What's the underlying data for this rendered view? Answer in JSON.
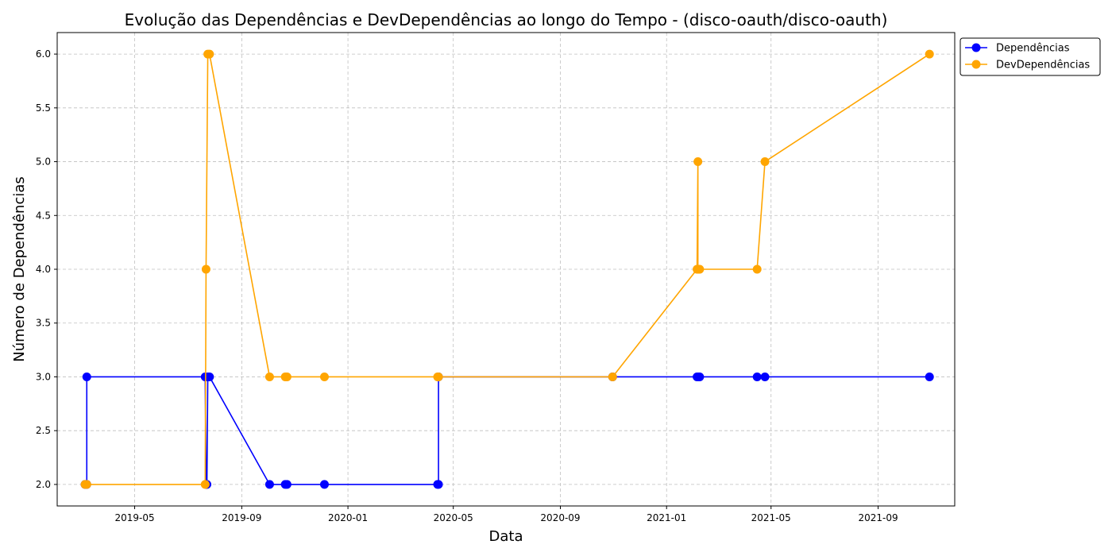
{
  "chart_data": {
    "type": "line",
    "title": "Evolução das Dependências e DevDependências ao longo do Tempo - (disco-oauth/disco-oauth)",
    "xlabel": "Data",
    "ylabel": "Número de Dependências",
    "xlim": [
      "2019-02-01",
      "2021-11-28"
    ],
    "ylim": [
      1.8,
      6.2
    ],
    "x_ticks": [
      "2019-05-01",
      "2019-09-01",
      "2020-01-01",
      "2020-05-01",
      "2020-09-01",
      "2021-01-01",
      "2021-05-01",
      "2021-09-01"
    ],
    "x_tick_labels": [
      "2019-05",
      "2019-09",
      "2020-01",
      "2020-05",
      "2020-09",
      "2021-01",
      "2021-05",
      "2021-09"
    ],
    "y_ticks": [
      2.0,
      2.5,
      3.0,
      3.5,
      4.0,
      4.5,
      5.0,
      5.5,
      6.0
    ],
    "y_tick_labels": [
      "2.0",
      "2.5",
      "3.0",
      "3.5",
      "4.0",
      "4.5",
      "5.0",
      "5.5",
      "6.0"
    ],
    "grid": true,
    "legend_position": "outside-top-right",
    "series": [
      {
        "name": "Dependências",
        "color": "#0000ff",
        "points": [
          [
            "2019-03-05",
            2
          ],
          [
            "2019-03-07",
            2
          ],
          [
            "2019-03-07",
            3
          ],
          [
            "2019-07-21",
            3
          ],
          [
            "2019-07-22",
            2
          ],
          [
            "2019-07-23",
            2
          ],
          [
            "2019-07-24",
            3
          ],
          [
            "2019-07-26",
            3
          ],
          [
            "2019-10-03",
            2
          ],
          [
            "2019-10-21",
            2
          ],
          [
            "2019-10-23",
            2
          ],
          [
            "2019-12-05",
            2
          ],
          [
            "2020-04-13",
            2
          ],
          [
            "2020-04-14",
            2
          ],
          [
            "2020-04-14",
            3
          ],
          [
            "2020-10-31",
            3
          ],
          [
            "2021-02-05",
            3
          ],
          [
            "2021-02-07",
            3
          ],
          [
            "2021-02-08",
            3
          ],
          [
            "2021-04-15",
            3
          ],
          [
            "2021-04-24",
            3
          ],
          [
            "2021-10-30",
            3
          ]
        ]
      },
      {
        "name": "DevDependências",
        "color": "#ffa500",
        "points": [
          [
            "2019-03-05",
            2
          ],
          [
            "2019-03-07",
            2
          ],
          [
            "2019-07-21",
            2
          ],
          [
            "2019-07-22",
            4
          ],
          [
            "2019-07-24",
            6
          ],
          [
            "2019-07-26",
            6
          ],
          [
            "2019-10-03",
            3
          ],
          [
            "2019-10-21",
            3
          ],
          [
            "2019-10-23",
            3
          ],
          [
            "2019-12-05",
            3
          ],
          [
            "2020-04-13",
            3
          ],
          [
            "2020-04-14",
            3
          ],
          [
            "2020-10-31",
            3
          ],
          [
            "2021-02-05",
            4
          ],
          [
            "2021-02-06",
            5
          ],
          [
            "2021-02-06",
            4
          ],
          [
            "2021-02-07",
            4
          ],
          [
            "2021-02-08",
            4
          ],
          [
            "2021-04-15",
            4
          ],
          [
            "2021-04-24",
            5
          ],
          [
            "2021-10-30",
            6
          ]
        ]
      }
    ]
  }
}
